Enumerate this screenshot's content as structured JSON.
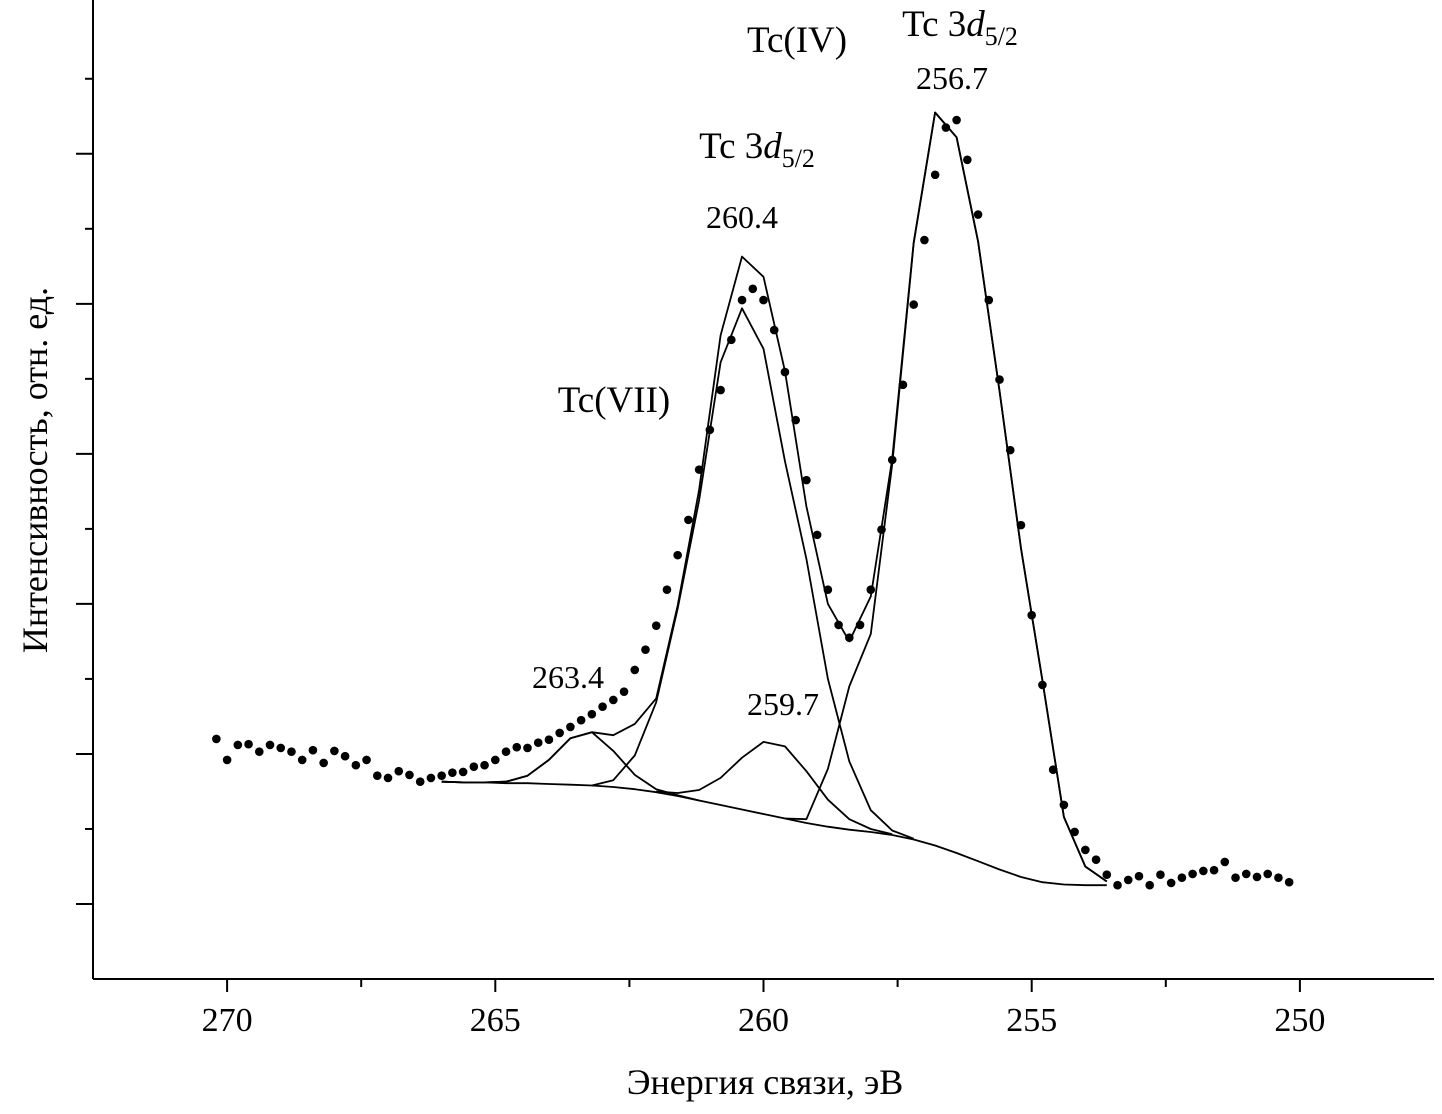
{
  "chart_data": {
    "type": "line",
    "xlabel": "Энергия связи, эВ",
    "ylabel": "Интенсивность, отн. ед.",
    "xlim": [
      272.5,
      247.5
    ],
    "ylim": [
      0,
      13.05
    ],
    "xticks": [
      270,
      265,
      260,
      255,
      250
    ],
    "xminor_ticks": [
      267.5,
      262.5,
      257.5,
      252.5
    ],
    "ymajor_ticks": [
      1,
      3,
      5,
      7,
      9,
      11
    ],
    "yminor_ticks": [
      2,
      4,
      6,
      8,
      10,
      12
    ],
    "annotations": [
      {
        "text": "Tc(IV)"
      },
      {
        "text": "Tc 3",
        "italic": "d",
        "sub": "5/2"
      },
      {
        "text": "256.7"
      },
      {
        "text": "Tc 3",
        "italic": "d",
        "sub": "5/2"
      },
      {
        "text": "260.4"
      },
      {
        "text": "Tc(VII)"
      },
      {
        "text": "263.4"
      },
      {
        "text": "259.7"
      }
    ],
    "series": [
      {
        "style": "markers",
        "color": "#000000",
        "x": [
          270.2,
          270.0,
          269.8,
          269.6,
          269.4,
          269.2,
          269.0,
          268.8,
          268.6,
          268.4,
          268.2,
          268.0,
          267.8,
          267.6,
          267.4,
          267.2,
          267.0,
          266.8,
          266.6,
          266.4,
          266.2,
          266.0,
          265.8,
          265.6,
          265.4,
          265.2,
          265.0,
          264.8,
          264.6,
          264.4,
          264.2,
          264.0,
          263.8,
          263.6,
          263.4,
          263.2,
          263.0,
          262.8,
          262.6,
          262.4,
          262.2,
          262.0,
          261.8,
          261.6,
          261.4,
          261.2,
          261.0,
          260.8,
          260.6,
          260.4,
          260.2,
          260.0,
          259.8,
          259.6,
          259.4,
          259.2,
          259.0,
          258.8,
          258.6,
          258.4,
          258.2,
          258.0,
          257.8,
          257.6,
          257.4,
          257.2,
          257.0,
          256.8,
          256.6,
          256.4,
          256.2,
          256.0,
          255.8,
          255.6,
          255.4,
          255.2,
          255.0,
          254.8,
          254.6,
          254.4,
          254.2,
          254.0,
          253.8,
          253.6,
          253.4,
          253.2,
          253.0,
          252.8,
          252.6,
          252.4,
          252.2,
          252.0,
          251.8,
          251.6,
          251.4,
          251.2,
          251.0,
          250.8,
          250.6,
          250.4,
          250.2
        ],
        "values": [
          3.2,
          2.92,
          3.12,
          3.13,
          3.03,
          3.12,
          3.08,
          3.03,
          2.92,
          3.05,
          2.88,
          3.04,
          2.97,
          2.85,
          2.92,
          2.71,
          2.68,
          2.77,
          2.72,
          2.63,
          2.68,
          2.71,
          2.75,
          2.76,
          2.83,
          2.85,
          2.92,
          3.03,
          3.09,
          3.08,
          3.15,
          3.19,
          3.28,
          3.36,
          3.45,
          3.53,
          3.63,
          3.72,
          3.83,
          4.12,
          4.39,
          4.71,
          5.19,
          5.65,
          6.12,
          6.79,
          7.32,
          7.85,
          8.52,
          9.05,
          9.2,
          9.05,
          8.65,
          8.09,
          7.45,
          6.65,
          5.92,
          5.19,
          4.72,
          4.55,
          4.72,
          5.19,
          5.99,
          6.92,
          7.92,
          8.99,
          9.85,
          10.72,
          11.35,
          11.45,
          10.92,
          10.19,
          9.05,
          7.99,
          7.05,
          6.05,
          4.85,
          3.92,
          2.79,
          2.32,
          1.96,
          1.72,
          1.59,
          1.39,
          1.25,
          1.32,
          1.37,
          1.25,
          1.39,
          1.28,
          1.35,
          1.4,
          1.44,
          1.45,
          1.56,
          1.35,
          1.4,
          1.36,
          1.4,
          1.35,
          1.29
        ]
      },
      {
        "style": "line",
        "color": "#000000",
        "x": [
          266.0,
          265.6,
          265.2,
          264.8,
          264.4,
          264.0,
          263.6,
          263.2,
          262.8,
          262.4,
          262.0,
          261.6,
          261.2,
          260.8,
          260.4,
          260.0,
          259.6,
          259.2,
          258.8,
          258.4,
          258.0,
          257.6,
          257.2,
          256.8,
          256.4,
          256.0,
          255.6,
          255.2,
          254.8,
          254.4,
          254.0,
          253.6
        ],
        "values": [
          2.63,
          2.62,
          2.62,
          2.61,
          2.61,
          2.6,
          2.59,
          2.58,
          2.56,
          2.53,
          2.49,
          2.44,
          2.38,
          2.32,
          2.26,
          2.2,
          2.14,
          2.08,
          2.03,
          1.99,
          1.96,
          1.92,
          1.86,
          1.78,
          1.68,
          1.57,
          1.46,
          1.36,
          1.29,
          1.26,
          1.25,
          1.25
        ]
      },
      {
        "style": "line",
        "color": "#000000",
        "x": [
          266.0,
          265.6,
          265.2,
          264.8,
          264.4,
          264.0,
          263.6,
          263.2,
          262.8,
          262.4,
          262.0,
          261.6,
          261.2,
          260.8,
          260.4,
          260.0,
          259.6,
          259.2,
          258.8,
          258.4,
          258.0,
          257.6,
          257.2,
          256.8,
          256.4,
          256.0,
          255.6,
          255.2,
          254.8,
          254.4,
          254.0,
          253.6
        ],
        "values": [
          2.63,
          2.62,
          2.62,
          2.63,
          2.71,
          2.92,
          3.21,
          3.29,
          3.25,
          3.4,
          3.74,
          4.98,
          6.52,
          8.58,
          9.63,
          9.36,
          8.1,
          6.3,
          5.0,
          4.5,
          5.1,
          6.93,
          9.82,
          11.55,
          11.22,
          9.83,
          7.84,
          5.74,
          3.98,
          2.16,
          1.5,
          1.3
        ]
      },
      {
        "style": "line",
        "color": "#000000",
        "x": [
          266.0,
          265.6,
          265.2,
          264.8,
          264.4,
          264.0,
          263.6,
          263.2,
          262.8,
          262.4,
          262.0,
          261.6,
          261.2,
          260.8,
          260.4,
          260.0,
          259.6,
          259.2,
          258.8,
          258.4,
          258.0,
          257.6,
          257.2,
          256.8,
          256.4,
          256.0,
          255.6,
          255.2,
          254.8,
          254.4,
          254.0,
          253.6
        ],
        "values": [
          2.63,
          2.62,
          2.62,
          2.63,
          2.71,
          2.92,
          3.21,
          3.29,
          3.04,
          2.72,
          2.53,
          2.45,
          2.38,
          null,
          null,
          null,
          null,
          null,
          null,
          null,
          null,
          null,
          null,
          null,
          null,
          null,
          null,
          null,
          null,
          null,
          null,
          null
        ]
      },
      {
        "style": "line",
        "color": "#000000",
        "x": [
          266.0,
          265.6,
          265.2,
          264.8,
          264.4,
          264.0,
          263.6,
          263.2,
          262.8,
          262.4,
          262.0,
          261.6,
          261.2,
          260.8,
          260.4,
          260.0,
          259.6,
          259.2,
          258.8,
          258.4,
          258.0,
          257.6,
          257.2,
          256.8,
          256.4,
          256.0,
          255.6,
          255.2,
          254.8,
          254.4,
          254.0,
          253.6
        ],
        "values": [
          null,
          null,
          null,
          null,
          null,
          null,
          null,
          2.58,
          2.65,
          2.98,
          3.69,
          4.94,
          6.38,
          8.22,
          8.94,
          8.4,
          6.9,
          5.6,
          4.0,
          2.9,
          2.25,
          1.98,
          1.87,
          null,
          null,
          null,
          null,
          null,
          null,
          null,
          null,
          null
        ]
      },
      {
        "style": "line",
        "color": "#000000",
        "x": [
          266.0,
          265.6,
          265.2,
          264.8,
          264.4,
          264.0,
          263.6,
          263.2,
          262.8,
          262.4,
          262.0,
          261.6,
          261.2,
          260.8,
          260.4,
          260.0,
          259.6,
          259.2,
          258.8,
          258.4,
          258.0,
          257.6,
          257.2,
          256.8,
          256.4,
          256.0,
          255.6,
          255.2,
          254.8,
          254.4,
          254.0,
          253.6
        ],
        "values": [
          null,
          null,
          null,
          null,
          null,
          null,
          null,
          null,
          null,
          null,
          2.5,
          2.48,
          2.52,
          2.68,
          2.95,
          3.16,
          3.1,
          2.77,
          2.39,
          2.13,
          2.0,
          1.93,
          null,
          null,
          null,
          null,
          null,
          null,
          null,
          null,
          null,
          null
        ]
      },
      {
        "style": "line",
        "color": "#000000",
        "x": [
          266.0,
          265.6,
          265.2,
          264.8,
          264.4,
          264.0,
          263.6,
          263.2,
          262.8,
          262.4,
          262.0,
          261.6,
          261.2,
          260.8,
          260.4,
          260.0,
          259.6,
          259.2,
          258.8,
          258.4,
          258.0,
          257.6,
          257.2,
          256.8,
          256.4,
          256.0,
          255.6,
          255.2,
          254.8,
          254.4,
          254.0,
          253.6
        ],
        "values": [
          null,
          null,
          null,
          null,
          null,
          null,
          null,
          null,
          null,
          null,
          null,
          null,
          null,
          null,
          null,
          null,
          2.14,
          2.13,
          2.8,
          3.9,
          4.6,
          6.86,
          9.81,
          11.55,
          11.22,
          9.83,
          7.84,
          5.74,
          3.98,
          2.16,
          1.5,
          1.3
        ]
      }
    ]
  }
}
